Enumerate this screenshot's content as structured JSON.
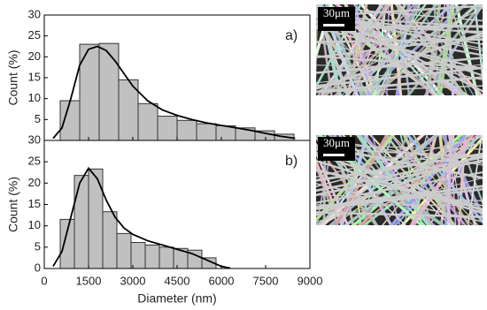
{
  "chart_data": [
    {
      "type": "histogram",
      "annotation": "a)",
      "ylabel": "Count (%)",
      "color": "#c0c0c0",
      "bins": [
        540,
        1200,
        1860,
        2520,
        3180,
        3840,
        4500,
        5160,
        5820,
        6480,
        7140,
        7800,
        8460
      ],
      "values": [
        9.5,
        23,
        23.2,
        14.5,
        8.8,
        5.8,
        4.8,
        4,
        3.5,
        3,
        2.3,
        1.5
      ],
      "fit": {
        "x": [
          300,
          600,
          900,
          1200,
          1500,
          1800,
          2100,
          2400,
          2700,
          3000,
          3500,
          4000,
          4500,
          5000,
          5500,
          6000,
          6500,
          7000,
          7500,
          8000,
          8500
        ],
        "y": [
          0.5,
          3,
          10,
          18,
          21.8,
          22.5,
          21.5,
          19,
          16,
          13,
          9.5,
          7.3,
          6,
          5,
          4.2,
          3.6,
          3,
          2.4,
          1.7,
          1,
          0.5
        ]
      },
      "xlim": [
        0,
        9000
      ],
      "ylim": [
        0,
        30
      ],
      "yticks": [
        5,
        10,
        15,
        20,
        25,
        30
      ]
    },
    {
      "type": "histogram",
      "annotation": "b)",
      "ylabel": "Count (%)",
      "xlabel": "Diameter (nm)",
      "color": "#c0c0c0",
      "bins": [
        540,
        1020,
        1500,
        1980,
        2460,
        2940,
        3420,
        3900,
        4380,
        4860,
        5340,
        5820
      ],
      "values": [
        11.5,
        21.8,
        23.3,
        13.3,
        8.2,
        6.1,
        5.5,
        5,
        4.7,
        4.3,
        2.5
      ],
      "fit": {
        "x": [
          300,
          600,
          900,
          1200,
          1500,
          1800,
          2100,
          2400,
          2700,
          3000,
          3500,
          4000,
          4500,
          5000,
          5500,
          6000,
          6300
        ],
        "y": [
          0.5,
          4,
          12,
          20,
          23.5,
          21,
          16,
          12,
          9.5,
          8,
          6.5,
          5.5,
          4.5,
          3.5,
          2,
          0.5,
          0.1
        ]
      },
      "xlim": [
        0,
        9000
      ],
      "ylim": [
        0,
        30
      ],
      "xticks": [
        0,
        1500,
        3000,
        4500,
        6000,
        7500,
        9000
      ],
      "yticks": [
        0,
        5,
        10,
        15,
        20,
        25,
        30
      ]
    }
  ],
  "images": [
    {
      "scale_label": "30μm"
    },
    {
      "scale_label": "30μm"
    }
  ]
}
